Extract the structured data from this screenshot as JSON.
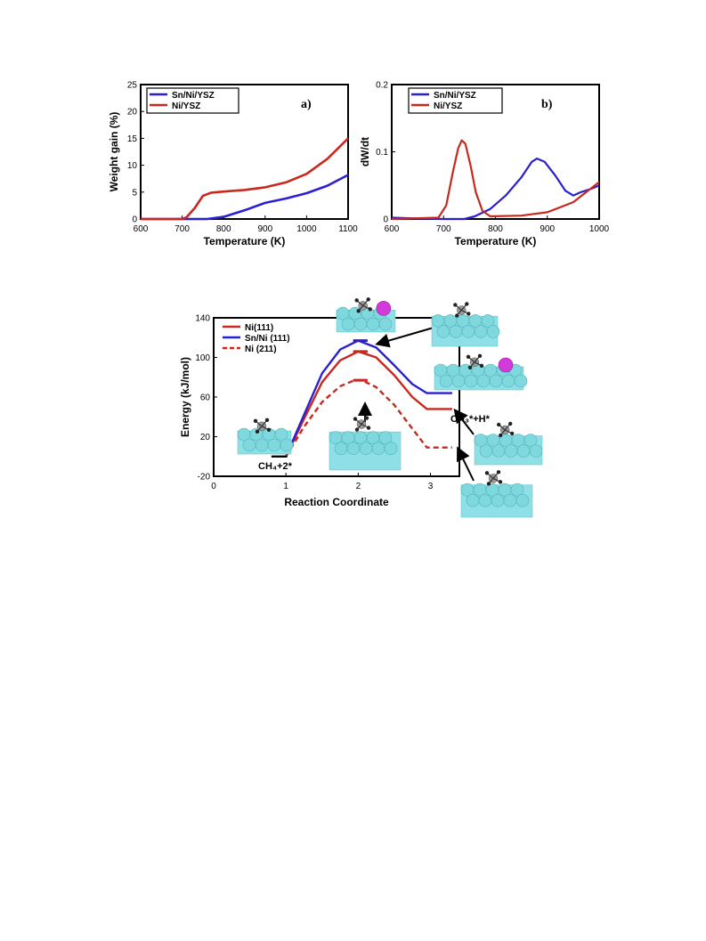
{
  "chart_data": [
    {
      "type": "line",
      "panel_label": "a)",
      "xlabel": "Temperature (K)",
      "ylabel": "Weight gain (%)",
      "xlim": [
        600,
        1100
      ],
      "ylim": [
        0,
        25
      ],
      "x_ticks": [
        600,
        700,
        800,
        900,
        1000,
        1100
      ],
      "y_ticks": [
        0,
        5,
        10,
        15,
        20,
        25
      ],
      "legend_position": "top-left",
      "series": [
        {
          "name": "Sn/Ni/YSZ",
          "color": "#2a1fd1",
          "points": [
            [
              600,
              0
            ],
            [
              700,
              0
            ],
            [
              760,
              0
            ],
            [
              800,
              0.4
            ],
            [
              850,
              1.6
            ],
            [
              900,
              3.0
            ],
            [
              950,
              3.8
            ],
            [
              1000,
              4.8
            ],
            [
              1050,
              6.2
            ],
            [
              1100,
              8.2
            ]
          ]
        },
        {
          "name": "Ni/YSZ",
          "color": "#c8281e",
          "points": [
            [
              600,
              0
            ],
            [
              700,
              0
            ],
            [
              710,
              0.3
            ],
            [
              730,
              2
            ],
            [
              750,
              4.3
            ],
            [
              770,
              4.9
            ],
            [
              800,
              5.1
            ],
            [
              850,
              5.4
            ],
            [
              900,
              5.9
            ],
            [
              950,
              6.8
            ],
            [
              1000,
              8.4
            ],
            [
              1050,
              11.2
            ],
            [
              1100,
              15.0
            ]
          ]
        }
      ]
    },
    {
      "type": "line",
      "panel_label": "b)",
      "xlabel": "Temperature (K)",
      "ylabel": "dW/dt",
      "xlim": [
        600,
        1000
      ],
      "ylim": [
        0,
        0.2
      ],
      "x_ticks": [
        600,
        700,
        800,
        900,
        1000
      ],
      "y_ticks": [
        0,
        0.1,
        0.2
      ],
      "legend_position": "top-left",
      "series": [
        {
          "name": "Sn/Ni/YSZ",
          "color": "#2a1fd1",
          "points": [
            [
              600,
              0.002
            ],
            [
              640,
              0.001
            ],
            [
              700,
              0
            ],
            [
              740,
              0
            ],
            [
              760,
              0.004
            ],
            [
              790,
              0.015
            ],
            [
              820,
              0.035
            ],
            [
              850,
              0.062
            ],
            [
              870,
              0.085
            ],
            [
              880,
              0.09
            ],
            [
              895,
              0.085
            ],
            [
              915,
              0.065
            ],
            [
              935,
              0.042
            ],
            [
              950,
              0.035
            ],
            [
              965,
              0.04
            ],
            [
              985,
              0.045
            ],
            [
              1000,
              0.05
            ]
          ]
        },
        {
          "name": "Ni/YSZ",
          "color": "#c8281e",
          "points": [
            [
              600,
              0
            ],
            [
              690,
              0.002
            ],
            [
              705,
              0.02
            ],
            [
              718,
              0.07
            ],
            [
              728,
              0.105
            ],
            [
              735,
              0.117
            ],
            [
              742,
              0.112
            ],
            [
              752,
              0.08
            ],
            [
              762,
              0.04
            ],
            [
              775,
              0.012
            ],
            [
              790,
              0.004
            ],
            [
              850,
              0.005
            ],
            [
              900,
              0.01
            ],
            [
              950,
              0.025
            ],
            [
              1000,
              0.055
            ]
          ]
        }
      ]
    },
    {
      "type": "line",
      "xlabel": "Reaction Coordinate",
      "ylabel": "Energy (kJ/mol)",
      "xlim": [
        0,
        3.4
      ],
      "ylim": [
        -20,
        140
      ],
      "x_ticks": [
        0,
        1,
        2,
        3
      ],
      "y_ticks": [
        -20,
        20,
        60,
        100,
        140
      ],
      "legend_position": "top-left",
      "annotations": [
        "CH₄+2*",
        "CH₃*+H*"
      ],
      "series": [
        {
          "name": "Ni(111)",
          "color": "#c8281e",
          "style": "solid",
          "points": [
            [
              0.8,
              0
            ],
            [
              1.0,
              0
            ],
            [
              1.25,
              38
            ],
            [
              1.5,
              75
            ],
            [
              1.75,
              97
            ],
            [
              2.0,
              106
            ],
            [
              2.25,
              100
            ],
            [
              2.5,
              82
            ],
            [
              2.75,
              60
            ],
            [
              2.95,
              48
            ],
            [
              3.3,
              48
            ]
          ]
        },
        {
          "name": "Sn/Ni (111)",
          "color": "#2a1fd1",
          "style": "solid",
          "points": [
            [
              0.8,
              0
            ],
            [
              1.0,
              0
            ],
            [
              1.25,
              42
            ],
            [
              1.5,
              84
            ],
            [
              1.75,
              108
            ],
            [
              2.0,
              117
            ],
            [
              2.25,
              110
            ],
            [
              2.5,
              92
            ],
            [
              2.75,
              73
            ],
            [
              2.95,
              64
            ],
            [
              3.3,
              64
            ]
          ]
        },
        {
          "name": "Ni (211)",
          "color": "#c8281e",
          "style": "dashed",
          "points": [
            [
              1.0,
              0
            ],
            [
              1.25,
              30
            ],
            [
              1.5,
              55
            ],
            [
              1.75,
              71
            ],
            [
              1.95,
              77
            ],
            [
              2.05,
              77
            ],
            [
              2.25,
              70
            ],
            [
              2.5,
              52
            ],
            [
              2.75,
              28
            ],
            [
              2.95,
              9
            ],
            [
              3.3,
              9
            ]
          ]
        }
      ]
    }
  ]
}
